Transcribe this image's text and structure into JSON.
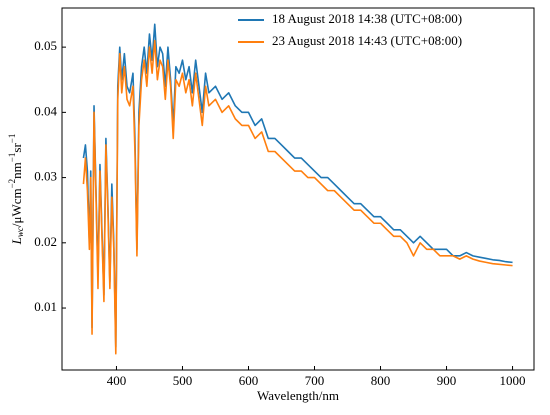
{
  "chart_data": {
    "type": "line",
    "xlabel": "Wavelength/nm",
    "ylabel_parts": [
      "L",
      "wc",
      "/μWcm",
      "−2",
      "nm",
      "−1",
      "sr",
      "−1"
    ],
    "x": [
      350,
      353,
      356,
      359,
      361,
      363,
      366,
      369,
      372,
      375,
      378,
      381,
      384,
      387,
      390,
      393,
      396,
      399,
      402,
      405,
      408,
      412,
      416,
      420,
      425,
      428,
      431,
      434,
      438,
      442,
      446,
      450,
      454,
      458,
      462,
      466,
      470,
      474,
      478,
      482,
      486,
      490,
      495,
      500,
      505,
      510,
      515,
      520,
      525,
      530,
      535,
      540,
      550,
      560,
      570,
      580,
      590,
      600,
      610,
      620,
      630,
      640,
      650,
      660,
      670,
      680,
      690,
      700,
      710,
      720,
      730,
      740,
      750,
      760,
      770,
      780,
      790,
      800,
      810,
      820,
      830,
      840,
      850,
      860,
      870,
      880,
      890,
      900,
      910,
      920,
      930,
      940,
      950,
      960,
      970,
      980,
      990,
      1000
    ],
    "series": [
      {
        "name": "18 August 2018 14:38 (UTC+08:00)",
        "color": "#1f77b4",
        "values": [
          0.033,
          0.035,
          0.031,
          0.02,
          0.031,
          0.007,
          0.041,
          0.028,
          0.015,
          0.032,
          0.022,
          0.012,
          0.036,
          0.026,
          0.014,
          0.029,
          0.02,
          0.004,
          0.044,
          0.05,
          0.045,
          0.049,
          0.044,
          0.043,
          0.046,
          0.036,
          0.019,
          0.04,
          0.047,
          0.05,
          0.046,
          0.052,
          0.048,
          0.0535,
          0.047,
          0.05,
          0.049,
          0.044,
          0.05,
          0.045,
          0.038,
          0.047,
          0.046,
          0.048,
          0.045,
          0.047,
          0.043,
          0.048,
          0.044,
          0.04,
          0.046,
          0.043,
          0.044,
          0.042,
          0.043,
          0.041,
          0.04,
          0.04,
          0.038,
          0.039,
          0.036,
          0.036,
          0.035,
          0.034,
          0.033,
          0.033,
          0.032,
          0.031,
          0.03,
          0.03,
          0.029,
          0.028,
          0.027,
          0.026,
          0.026,
          0.025,
          0.024,
          0.024,
          0.023,
          0.022,
          0.022,
          0.021,
          0.02,
          0.021,
          0.02,
          0.019,
          0.019,
          0.019,
          0.018,
          0.018,
          0.0185,
          0.018,
          0.0178,
          0.0176,
          0.0174,
          0.0173,
          0.0171,
          0.017
        ]
      },
      {
        "name": "23 August 2018 14:43 (UTC+08:00)",
        "color": "#ff7f0e",
        "values": [
          0.029,
          0.033,
          0.028,
          0.019,
          0.03,
          0.006,
          0.04,
          0.027,
          0.013,
          0.031,
          0.021,
          0.011,
          0.035,
          0.025,
          0.013,
          0.027,
          0.019,
          0.003,
          0.042,
          0.049,
          0.043,
          0.047,
          0.042,
          0.041,
          0.044,
          0.034,
          0.018,
          0.038,
          0.045,
          0.048,
          0.044,
          0.05,
          0.046,
          0.051,
          0.045,
          0.048,
          0.047,
          0.042,
          0.048,
          0.044,
          0.036,
          0.045,
          0.044,
          0.046,
          0.043,
          0.045,
          0.041,
          0.046,
          0.042,
          0.038,
          0.044,
          0.041,
          0.042,
          0.04,
          0.041,
          0.039,
          0.038,
          0.038,
          0.036,
          0.037,
          0.034,
          0.034,
          0.033,
          0.032,
          0.031,
          0.031,
          0.03,
          0.03,
          0.029,
          0.028,
          0.028,
          0.027,
          0.026,
          0.025,
          0.025,
          0.024,
          0.023,
          0.023,
          0.022,
          0.021,
          0.021,
          0.02,
          0.018,
          0.02,
          0.019,
          0.019,
          0.018,
          0.018,
          0.018,
          0.0175,
          0.018,
          0.0175,
          0.0172,
          0.017,
          0.0168,
          0.0167,
          0.0166,
          0.0165
        ]
      }
    ],
    "xlim": [
      317.5,
      1032.5
    ],
    "xticks": [
      400,
      500,
      600,
      700,
      800,
      900,
      1000
    ],
    "ylim": [
      0.0005,
      0.056
    ],
    "yticks": [
      0.01,
      0.02,
      0.03,
      0.04,
      0.05
    ],
    "legend": "upper right"
  }
}
